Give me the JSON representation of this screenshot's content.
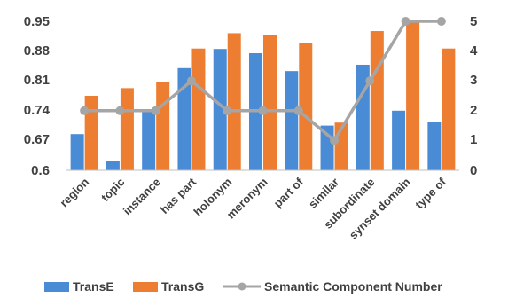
{
  "chart_data": {
    "type": "bar",
    "categories": [
      "region",
      "topic",
      "instance",
      "has part",
      "holonym",
      "meronym",
      "part of",
      "similar",
      "subordinate",
      "synset domain",
      "type of"
    ],
    "series": [
      {
        "name": "TransE",
        "axis": "left",
        "kind": "bar",
        "color": "#4a8bd6",
        "values": [
          0.685,
          0.622,
          0.74,
          0.84,
          0.885,
          0.875,
          0.833,
          0.705,
          0.848,
          0.74,
          0.713
        ]
      },
      {
        "name": "TransG",
        "axis": "left",
        "kind": "bar",
        "color": "#ed7d31",
        "values": [
          0.775,
          0.793,
          0.807,
          0.886,
          0.922,
          0.918,
          0.898,
          0.712,
          0.927,
          0.95,
          0.886
        ]
      },
      {
        "name": "Semantic Component Number",
        "axis": "right",
        "kind": "line",
        "color": "#a5a5a5",
        "values": [
          2,
          2,
          2,
          3,
          2,
          2,
          2,
          1,
          3,
          5,
          5
        ]
      }
    ],
    "y_left": {
      "ticks": [
        "0.95",
        "0.88",
        "0.81",
        "0.74",
        "0.67",
        "0.6"
      ],
      "lim": [
        0.6,
        0.95
      ]
    },
    "y_right": {
      "ticks": [
        "5",
        "4",
        "3",
        "2",
        "1",
        "0"
      ],
      "lim": [
        0,
        5
      ]
    },
    "legend": {
      "position": "bottom",
      "labels": [
        "TransE",
        "TransG",
        "Semantic Component Number"
      ]
    },
    "grid": false
  }
}
